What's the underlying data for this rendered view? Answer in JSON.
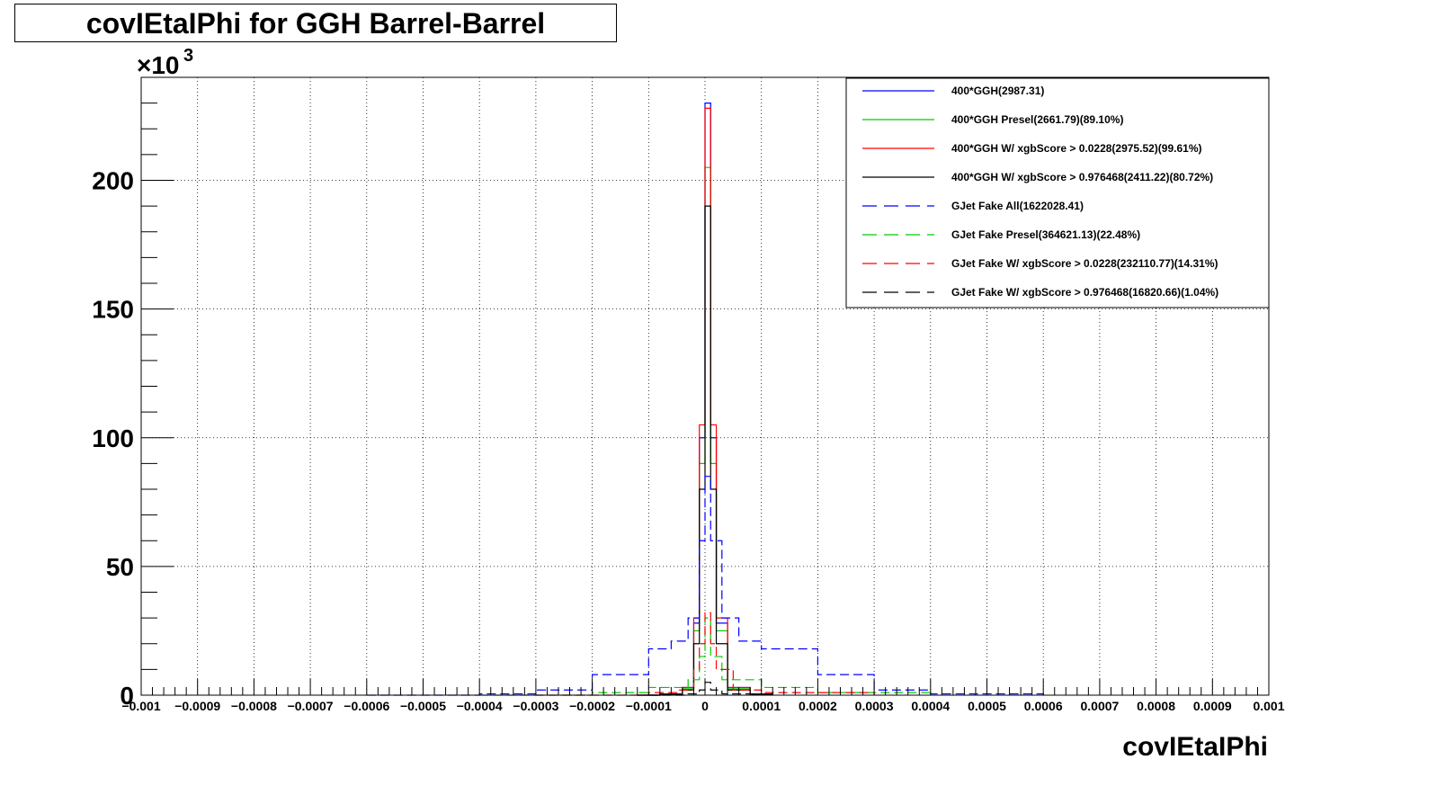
{
  "chart_data": {
    "type": "line",
    "title": "covIEtaIPhi for GGH Barrel-Barrel",
    "xlabel": "covIEtaIPhi",
    "ylabel": "",
    "y_multiplier": "×10",
    "y_multiplier_exp": "3",
    "xlim": [
      -0.001,
      0.001
    ],
    "ylim": [
      0,
      240
    ],
    "x_ticks": [
      -0.001,
      -0.0009,
      -0.0008,
      -0.0007,
      -0.0006,
      -0.0005,
      -0.0004,
      -0.0003,
      -0.0002,
      -0.0001,
      0,
      0.0001,
      0.0002,
      0.0003,
      0.0004,
      0.0005,
      0.0006,
      0.0007,
      0.0008,
      0.0009,
      0.001
    ],
    "x_tick_labels": [
      "−0.001",
      "−0.0009",
      "−0.0008",
      "−0.0007",
      "−0.0006",
      "−0.0005",
      "−0.0004",
      "−0.0003",
      "−0.0002",
      "−0.0001",
      "0",
      "0.0001",
      "0.0002",
      "0.0003",
      "0.0004",
      "0.0005",
      "0.0006",
      "0.0007",
      "0.0008",
      "0.0009",
      "0.001"
    ],
    "y_ticks": [
      0,
      50,
      100,
      150,
      200
    ],
    "y_tick_labels": [
      "0",
      "50",
      "100",
      "150",
      "200"
    ],
    "grid": true,
    "legend_position": "top-right",
    "series": [
      {
        "name": "400*GGH(2987.31)",
        "color": "#0000ff",
        "dash": "solid",
        "x": [
          -0.00012,
          -8e-05,
          -4e-05,
          -2e-05,
          -1e-05,
          0,
          1e-05,
          2e-05,
          4e-05,
          8e-05,
          0.00012
        ],
        "y": [
          0,
          0.5,
          3,
          28,
          100,
          230,
          100,
          28,
          3,
          0.5,
          0
        ]
      },
      {
        "name": "400*GGH Presel(2661.79)(89.10%)",
        "color": "#00cc00",
        "dash": "solid",
        "x": [
          -0.00012,
          -8e-05,
          -4e-05,
          -2e-05,
          -1e-05,
          0,
          1e-05,
          2e-05,
          4e-05,
          8e-05,
          0.00012
        ],
        "y": [
          0,
          0.5,
          2.5,
          25,
          90,
          205,
          90,
          25,
          2.5,
          0.5,
          0
        ]
      },
      {
        "name": "400*GGH W/ xgbScore > 0.0228(2975.52)(99.61%)",
        "color": "#ff0000",
        "dash": "solid",
        "x": [
          -0.00012,
          -8e-05,
          -4e-05,
          -2e-05,
          -1e-05,
          0,
          1e-05,
          2e-05,
          4e-05,
          8e-05,
          0.00012
        ],
        "y": [
          0,
          0.5,
          3,
          30,
          105,
          228,
          105,
          30,
          3,
          0.5,
          0
        ]
      },
      {
        "name": "400*GGH W/ xgbScore > 0.976468(2411.22)(80.72%)",
        "color": "#000000",
        "dash": "solid",
        "x": [
          -0.00012,
          -8e-05,
          -4e-05,
          -2e-05,
          -1e-05,
          0,
          1e-05,
          2e-05,
          4e-05,
          8e-05,
          0.00012
        ],
        "y": [
          0,
          0.4,
          2,
          20,
          80,
          190,
          80,
          20,
          2,
          0.4,
          0
        ]
      },
      {
        "name": "GJet Fake All(1622028.41)",
        "color": "#0000ff",
        "dash": "long",
        "x": [
          -0.0006,
          -0.0004,
          -0.0003,
          -0.0002,
          -0.0001,
          -6e-05,
          -3e-05,
          -1e-05,
          0,
          1e-05,
          3e-05,
          6e-05,
          0.0001,
          0.0002,
          0.0003,
          0.0004,
          0.0006
        ],
        "y": [
          0,
          0.5,
          2,
          8,
          18,
          21,
          30,
          60,
          85,
          60,
          30,
          21,
          18,
          8,
          2,
          0.5,
          0
        ]
      },
      {
        "name": "GJet Fake Presel(364621.13)(22.48%)",
        "color": "#00cc00",
        "dash": "long",
        "x": [
          -0.0004,
          -0.0002,
          -0.0001,
          -3e-05,
          -1e-05,
          0,
          1e-05,
          3e-05,
          0.0001,
          0.0002,
          0.0004
        ],
        "y": [
          0,
          1,
          3,
          6,
          15,
          30,
          15,
          6,
          3,
          1,
          0
        ]
      },
      {
        "name": "GJet Fake W/ xgbScore > 0.0228(232110.77)(14.31%)",
        "color": "#ff0000",
        "dash": "long",
        "x": [
          -0.0003,
          -0.0001,
          -5e-05,
          -2e-05,
          -1e-05,
          0,
          1e-05,
          2e-05,
          5e-05,
          0.0001,
          0.0003
        ],
        "y": [
          0,
          1,
          2,
          10,
          20,
          32,
          20,
          10,
          2,
          1,
          0
        ]
      },
      {
        "name": "GJet Fake W/ xgbScore > 0.976468(16820.66)(1.04%)",
        "color": "#000000",
        "dash": "long",
        "x": [
          -0.0001,
          -3e-05,
          -1e-05,
          0,
          1e-05,
          3e-05,
          0.0001
        ],
        "y": [
          0,
          0.5,
          2,
          5,
          2,
          0.5,
          0
        ]
      }
    ]
  }
}
